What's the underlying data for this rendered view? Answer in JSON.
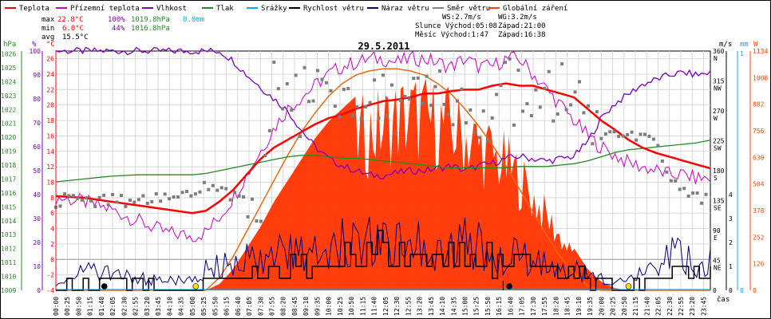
{
  "chart_data": {
    "type": "line",
    "title": "29.5.2011",
    "legend": [
      {
        "name": "Teplota",
        "color": "#ff0000"
      },
      {
        "name": "Přízemní teplota",
        "color": "#cc00cc"
      },
      {
        "name": "Vlhkost",
        "color": "#7f00bf"
      },
      {
        "name": "Tlak",
        "color": "#228b22"
      },
      {
        "name": "Srážky",
        "color": "#00aaff"
      },
      {
        "name": "Rychlost větru",
        "color": "#000000"
      },
      {
        "name": "Náraz větru",
        "color": "#00007f"
      },
      {
        "name": "Směr větru",
        "color": "#808080"
      },
      {
        "name": "Globální záření",
        "color": "#ff4500"
      }
    ],
    "stats": {
      "max_row": {
        "label": "max",
        "temp": "22.8°C",
        "hum": "100%",
        "press": "1019.8hPa",
        "rain": "0.0mm"
      },
      "min_row": {
        "label": "min",
        "temp": "6.0°C",
        "hum": "44%",
        "press": "1016.8hPa"
      },
      "avg_row": {
        "label": "avg",
        "temp": "15.5°C"
      }
    },
    "info": {
      "ws": "WS:2.7m/s",
      "wg": "WG:3.2m/s",
      "sun": "Slunce Východ:05:08",
      "sun_set": "Západ:21:00",
      "moon": "Měsíc  Východ:1:47",
      "moon_set": "Západ:16:38"
    },
    "axes": {
      "hpa_title": "hPa",
      "pct_title": "%",
      "c_title": "°C",
      "ms_title": "m/s",
      "mm_title": "mm",
      "w_title": "W",
      "x_title": "čas",
      "hpa_ticks": [
        "1026",
        "1025",
        "1024",
        "1023",
        "1022",
        "1021",
        "1020",
        "1019",
        "1018",
        "1017",
        "1016",
        "1015",
        "1014",
        "1013",
        "1012",
        "1011",
        "1010",
        "1009"
      ],
      "pct_ticks": [
        "100",
        "90",
        "80",
        "70",
        "60",
        "50",
        "40",
        "30",
        "20",
        "10",
        "0"
      ],
      "temp_ticks": [
        "26",
        "24",
        "22",
        "20",
        "18",
        "16",
        "14",
        "12",
        "10",
        "8",
        "6",
        "4",
        "2",
        "0",
        "-2",
        "-4"
      ],
      "dir_ticks": [
        [
          "360",
          "N"
        ],
        [
          "315",
          "NW"
        ],
        [
          "270",
          "W"
        ],
        [
          "225",
          "SW"
        ],
        [
          "180",
          "S"
        ],
        [
          "135",
          "SE"
        ],
        [
          "90",
          "E"
        ],
        [
          "45",
          "NE"
        ],
        [
          "0",
          ""
        ]
      ],
      "ms_ticks": [
        "4",
        "3",
        "2",
        "1",
        "0"
      ],
      "mm_ticks": [
        "1",
        "0"
      ],
      "w_ticks": [
        "1134",
        "1008",
        "882",
        "756",
        "630",
        "504",
        "378",
        "252",
        "126",
        "0"
      ],
      "x_labels": [
        "00:00",
        "00:25",
        "00:50",
        "01:15",
        "01:40",
        "02:05",
        "02:30",
        "02:55",
        "03:20",
        "03:45",
        "04:10",
        "04:35",
        "05:00",
        "05:25",
        "05:50",
        "06:15",
        "06:40",
        "07:05",
        "07:30",
        "07:55",
        "08:20",
        "08:45",
        "09:10",
        "09:35",
        "10:00",
        "10:25",
        "10:50",
        "11:15",
        "11:40",
        "12:05",
        "12:30",
        "12:55",
        "13:20",
        "13:45",
        "14:10",
        "14:35",
        "15:00",
        "15:25",
        "15:50",
        "16:15",
        "16:40",
        "17:05",
        "17:30",
        "17:55",
        "18:20",
        "18:45",
        "19:10",
        "19:35",
        "20:00",
        "20:25",
        "20:50",
        "21:15",
        "21:40",
        "22:05",
        "22:30",
        "22:55",
        "23:20",
        "23:45"
      ]
    },
    "series": {
      "hours": [
        0,
        1,
        2,
        3,
        4,
        5,
        5.5,
        6,
        6.5,
        7,
        7.5,
        8,
        8.5,
        9,
        9.5,
        10,
        10.5,
        11,
        11.5,
        12,
        12.5,
        13,
        13.5,
        14,
        14.5,
        15,
        15.5,
        16,
        16.5,
        17,
        17.5,
        18,
        18.5,
        19,
        19.5,
        20,
        20.5,
        21,
        21.5,
        22,
        22.5,
        23,
        23.5,
        24
      ],
      "temperature_c": [
        8.2,
        8.0,
        7.5,
        7.0,
        6.5,
        6.0,
        6.3,
        7.5,
        9.0,
        11.0,
        13.0,
        14.5,
        15.5,
        16.5,
        17.5,
        18.3,
        18.8,
        19.5,
        20.0,
        20.5,
        20.7,
        21.0,
        21.5,
        21.5,
        21.8,
        22.0,
        22.0,
        22.5,
        22.8,
        22.5,
        22.5,
        22.0,
        21.5,
        21.0,
        19.5,
        18.0,
        16.8,
        15.5,
        14.5,
        13.8,
        13.3,
        12.8,
        12.3,
        11.8
      ],
      "ground_temp_c": [
        8.0,
        7.5,
        6.5,
        5.0,
        3.5,
        3.0,
        3.5,
        5.5,
        8.0,
        11.0,
        14.0,
        17.0,
        19.5,
        21.0,
        22.5,
        24.0,
        25.0,
        25.5,
        26.0,
        26.0,
        25.5,
        26.0,
        26.0,
        25.5,
        25.0,
        26.0,
        25.0,
        25.0,
        26.0,
        26.0,
        24.0,
        22.0,
        20.0,
        18.0,
        16.0,
        14.5,
        13.5,
        12.5,
        12.0,
        11.5,
        11.0,
        11.0,
        10.5,
        10.5
      ],
      "humidity_pct": [
        100,
        100,
        100,
        100,
        100,
        100,
        100,
        100,
        96,
        90,
        85,
        80,
        75,
        67,
        60,
        55,
        52,
        50,
        48,
        48,
        49,
        50,
        50,
        51,
        52,
        50,
        52,
        53,
        55,
        56,
        55,
        54,
        55,
        56,
        62,
        72,
        78,
        82,
        86,
        88,
        90,
        91,
        90,
        91
      ],
      "pressure_hpa": [
        1016.8,
        1017.0,
        1017.2,
        1017.3,
        1017.3,
        1017.3,
        1017.4,
        1017.6,
        1017.8,
        1018.0,
        1018.2,
        1018.4,
        1018.6,
        1018.7,
        1018.7,
        1018.6,
        1018.5,
        1018.5,
        1018.4,
        1018.3,
        1018.2,
        1018.1,
        1018.0,
        1017.9,
        1017.8,
        1017.8,
        1017.8,
        1017.8,
        1017.8,
        1017.9,
        1017.9,
        1017.9,
        1018.0,
        1018.1,
        1018.3,
        1018.6,
        1018.9,
        1019.1,
        1019.2,
        1019.3,
        1019.4,
        1019.5,
        1019.6,
        1019.8
      ],
      "wind_dir_deg": [
        135,
        135,
        135,
        135,
        140,
        145,
        155,
        150,
        145,
        140,
        135,
        300,
        290,
        285,
        280,
        310,
        300,
        305,
        295,
        300,
        290,
        285,
        260,
        300,
        290,
        280,
        270,
        265,
        300,
        285,
        280,
        270,
        300,
        290,
        240,
        235,
        230,
        230,
        225,
        225,
        160,
        150,
        140,
        140
      ],
      "wind_speed_ms": [
        0.1,
        0.3,
        0.4,
        0.2,
        0.2,
        0.1,
        0.3,
        0.4,
        0.5,
        0.8,
        0.6,
        1.1,
        1.0,
        1.2,
        0.9,
        1.3,
        1.5,
        1.4,
        1.6,
        1.5,
        1.3,
        1.6,
        1.5,
        1.4,
        1.3,
        1.5,
        1.4,
        1.2,
        1.1,
        1.2,
        1.0,
        0.8,
        0.7,
        0.6,
        0.4,
        0.3,
        0.2,
        0.2,
        0.3,
        0.5,
        0.8,
        0.9,
        0.6,
        0.8
      ],
      "wind_gust_ms": [
        0.5,
        1.0,
        0.8,
        0.6,
        0.5,
        0.5,
        1.0,
        1.2,
        1.4,
        1.5,
        1.3,
        2.0,
        1.8,
        2.2,
        1.9,
        2.4,
        2.6,
        2.5,
        2.8,
        2.4,
        2.3,
        2.6,
        2.5,
        2.2,
        2.1,
        2.4,
        2.2,
        1.9,
        1.7,
        1.8,
        1.5,
        1.3,
        1.1,
        1.0,
        0.8,
        0.6,
        0.4,
        0.5,
        0.9,
        1.4,
        1.8,
        1.6,
        1.2,
        1.5
      ],
      "radiation_w_m2": [
        0,
        0,
        0,
        0,
        0,
        0,
        0,
        30,
        100,
        200,
        300,
        420,
        520,
        620,
        720,
        800,
        860,
        920,
        960,
        1000,
        1040,
        1060,
        1040,
        1020,
        980,
        940,
        880,
        820,
        760,
        680,
        560,
        440,
        320,
        200,
        100,
        40,
        10,
        0,
        0,
        0,
        0,
        0,
        0,
        0
      ],
      "radiation_clear_sky_w_m2": [
        0,
        0,
        0,
        0,
        0,
        0,
        0,
        60,
        160,
        280,
        400,
        520,
        640,
        750,
        840,
        920,
        980,
        1020,
        1040,
        1050,
        1050,
        1040,
        1020,
        980,
        930,
        860,
        780,
        690,
        590,
        480,
        370,
        260,
        160,
        80,
        20,
        0,
        0,
        0,
        0,
        0,
        0,
        0,
        0,
        0
      ],
      "rain_mm": [
        0,
        0,
        0,
        0,
        0,
        0,
        0,
        0,
        0,
        0,
        0,
        0,
        0,
        0,
        0,
        0,
        0,
        0,
        0,
        0,
        0,
        0,
        0,
        0,
        0,
        0,
        0,
        0,
        0,
        0,
        0,
        0,
        0,
        0,
        0,
        0,
        0,
        0,
        0,
        0,
        0,
        0,
        0,
        0
      ]
    },
    "ranges": {
      "temp_c": [
        -4,
        27
      ],
      "humidity_pct": [
        0,
        100
      ],
      "pressure_hpa": [
        1009,
        1026.2
      ],
      "wind_dir_deg": [
        0,
        360
      ],
      "wind_ms": [
        0,
        4
      ],
      "radiation_w_m2": [
        0,
        1134
      ],
      "hours": [
        0,
        24
      ]
    },
    "markers": [
      {
        "kind": "moon-rise",
        "hour": 1.78,
        "color": "#000000"
      },
      {
        "kind": "sun-rise",
        "hour": 5.13,
        "color": "#ffdd00"
      },
      {
        "kind": "moon-set",
        "hour": 16.63,
        "color": "#000000"
      },
      {
        "kind": "sun-set",
        "hour": 21.0,
        "color": "#ffdd00"
      }
    ]
  }
}
